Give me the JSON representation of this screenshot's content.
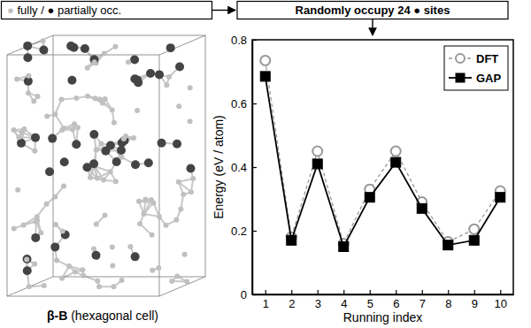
{
  "chart_data": {
    "type": "line",
    "xlabel": "Running index",
    "ylabel": "Energy (eV / atom)",
    "x": [
      1,
      2,
      3,
      4,
      5,
      6,
      7,
      8,
      9,
      10
    ],
    "series": [
      {
        "name": "DFT",
        "color": "#999999",
        "marker": "circle-open",
        "line_style": "dashed",
        "values": [
          0.735,
          0.18,
          0.45,
          0.16,
          0.33,
          0.45,
          0.29,
          0.165,
          0.205,
          0.325
        ]
      },
      {
        "name": "GAP",
        "color": "#000000",
        "marker": "square",
        "line_style": "solid",
        "values": [
          0.685,
          0.17,
          0.41,
          0.15,
          0.305,
          0.415,
          0.27,
          0.155,
          0.17,
          0.305
        ]
      }
    ],
    "xlim": [
      0.5,
      10.5
    ],
    "ylim": [
      0,
      0.8
    ],
    "xticks": [
      1,
      2,
      3,
      4,
      5,
      6,
      7,
      8,
      9,
      10
    ],
    "yticks": [
      0,
      0.2,
      0.4,
      0.6,
      0.8
    ],
    "legend": "top-right"
  },
  "diagram": {
    "left_box": "● fully / ● partially occ.",
    "right_box": "Randomly occupy 24 ● sites",
    "structure_label": "β-B (hexagonal cell)"
  }
}
